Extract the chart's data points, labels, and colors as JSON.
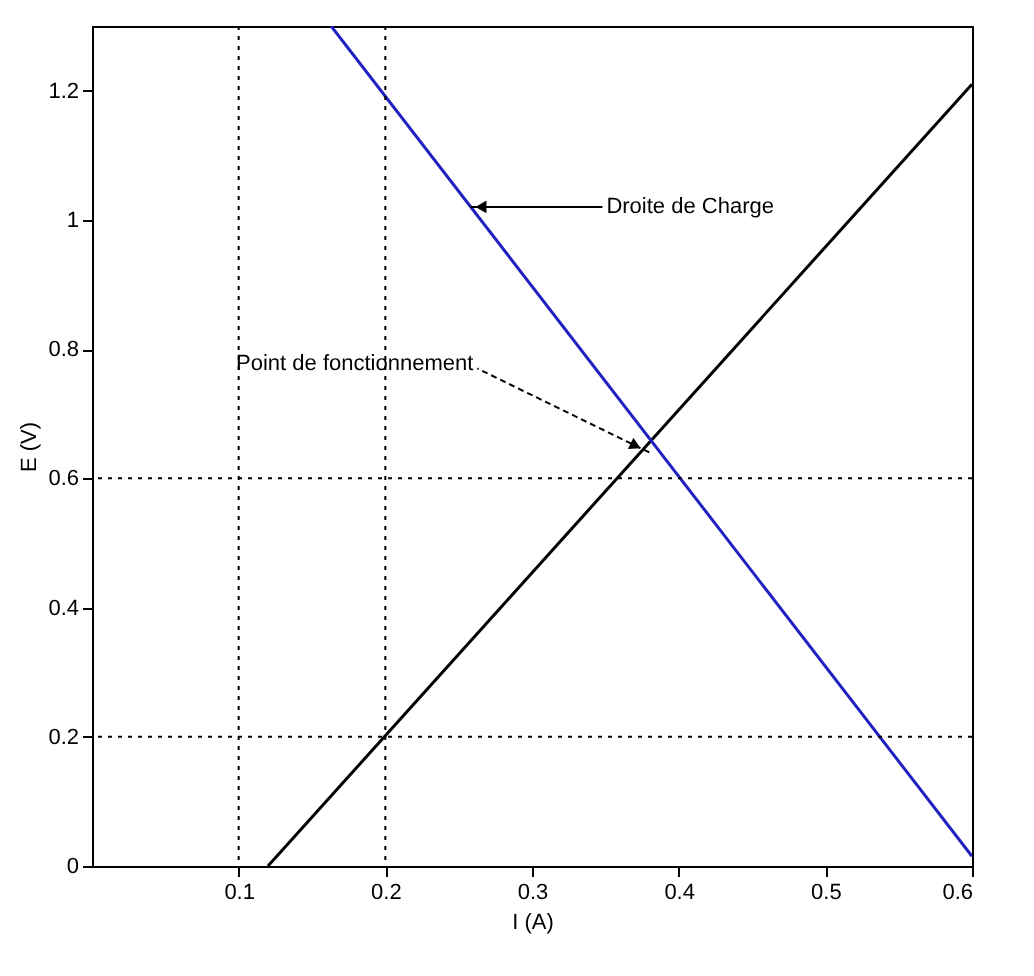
{
  "chart_data": {
    "type": "line",
    "xlabel": "I (A)",
    "ylabel": "E (V)",
    "xlim": [
      0,
      0.6
    ],
    "ylim": [
      0,
      1.3
    ],
    "xticks": [
      0.1,
      0.2,
      0.3,
      0.4,
      0.5,
      0.6
    ],
    "yticks": [
      0,
      0.2,
      0.4,
      0.6,
      0.8,
      1,
      1.2
    ],
    "series": [
      {
        "color": "#000000",
        "x": [
          0.12,
          0.6
        ],
        "values": [
          0,
          1.21
        ]
      },
      {
        "color": "#2020c0",
        "x": [
          0.163,
          0.6
        ],
        "values": [
          1.3,
          0.015
        ]
      }
    ],
    "ref_lines": [
      {
        "axis": "x",
        "value": 0.1,
        "line_style": "dotted",
        "color": "#000000"
      },
      {
        "axis": "x",
        "value": 0.2,
        "line_style": "dotted",
        "color": "#000000"
      },
      {
        "axis": "y",
        "value": 0.2,
        "line_style": "dotted",
        "color": "#000000"
      },
      {
        "axis": "y",
        "value": 0.6,
        "line_style": "dotted",
        "color": "#000000"
      }
    ],
    "annotations": [
      {
        "text": "Droite de Charge",
        "x": 0.258,
        "y": 1.02
      },
      {
        "text": "Point de fonctionnement",
        "x": 0.38,
        "y": 0.64
      }
    ],
    "grid": false,
    "marker": "none",
    "line_style": "solid"
  }
}
